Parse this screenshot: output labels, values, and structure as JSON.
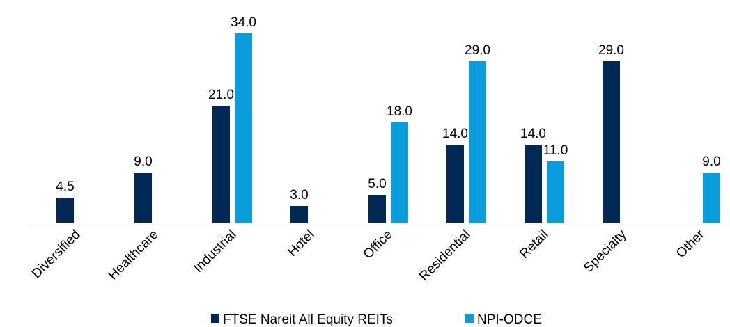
{
  "chart_data": {
    "type": "bar",
    "categories": [
      "Diversified",
      "Healthcare",
      "Industrial",
      "Hotel",
      "Office",
      "Residential",
      "Retail",
      "Specialty",
      "Other"
    ],
    "series": [
      {
        "name": "FTSE Nareit All Equity REITs",
        "color": "#002855",
        "values": [
          4.5,
          9,
          21,
          3,
          5,
          14,
          14,
          29,
          null
        ],
        "value_labels": [
          "4.5",
          "9.0",
          "21.0",
          "3.0",
          "5.0",
          "14.0",
          "14.0",
          "29.0",
          null
        ]
      },
      {
        "name": "NPI-ODCE",
        "color": "#0a9ddb",
        "values": [
          null,
          null,
          34,
          null,
          18,
          29,
          11,
          null,
          9
        ],
        "value_labels": [
          null,
          null,
          "34.0",
          null,
          "18.0",
          "29.0",
          "11.0",
          null,
          "9.0"
        ]
      }
    ],
    "ylim": [
      0,
      35
    ],
    "legend": "bottom"
  }
}
